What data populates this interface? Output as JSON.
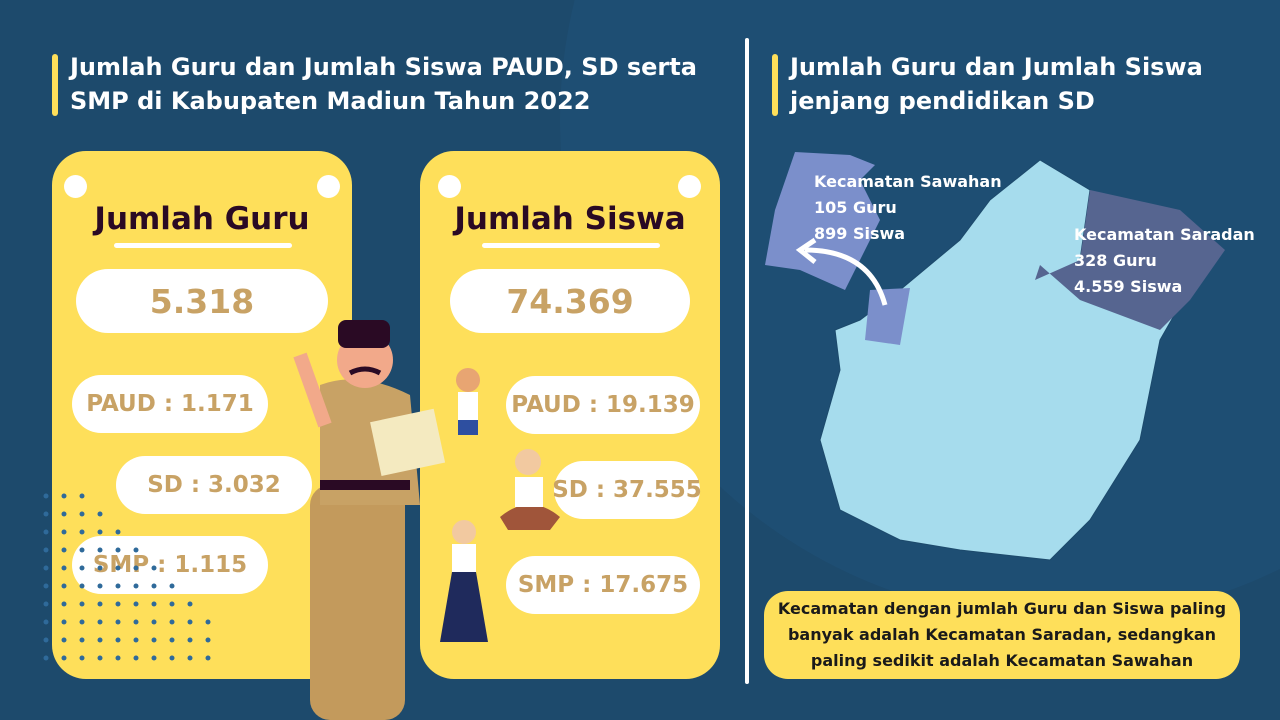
{
  "left": {
    "title": "Jumlah Guru dan Jumlah Siswa PAUD, SD serta SMP di Kabupaten Madiun Tahun 2022",
    "guru": {
      "heading": "Jumlah Guru",
      "total": "5.318",
      "paud": "PAUD : 1.171",
      "sd": "SD : 3.032",
      "smp": "SMP : 1.115"
    },
    "siswa": {
      "heading": "Jumlah Siswa",
      "total": "74.369",
      "paud": "PAUD : 19.139",
      "sd": "SD : 37.555",
      "smp": "SMP : 17.675"
    }
  },
  "right": {
    "title": "Jumlah Guru dan Jumlah Siswa jenjang pendidikan SD",
    "sawahan": {
      "name": "Kecamatan Sawahan",
      "guru": "105 Guru",
      "siswa": "899 Siswa"
    },
    "saradan": {
      "name": "Kecamatan Saradan",
      "guru": "328 Guru",
      "siswa": "4.559 Siswa"
    },
    "note": "Kecamatan dengan jumlah Guru dan Siswa paling banyak adalah Kecamatan Saradan, sedangkan paling sedikit adalah Kecamatan Sawahan"
  },
  "colors": {
    "background": "#1d4a6c",
    "card": "#fedf5a",
    "number": "#c8a265",
    "map": "#a6dced",
    "sawahan": "#7b8fcb",
    "saradan": "#566590"
  }
}
